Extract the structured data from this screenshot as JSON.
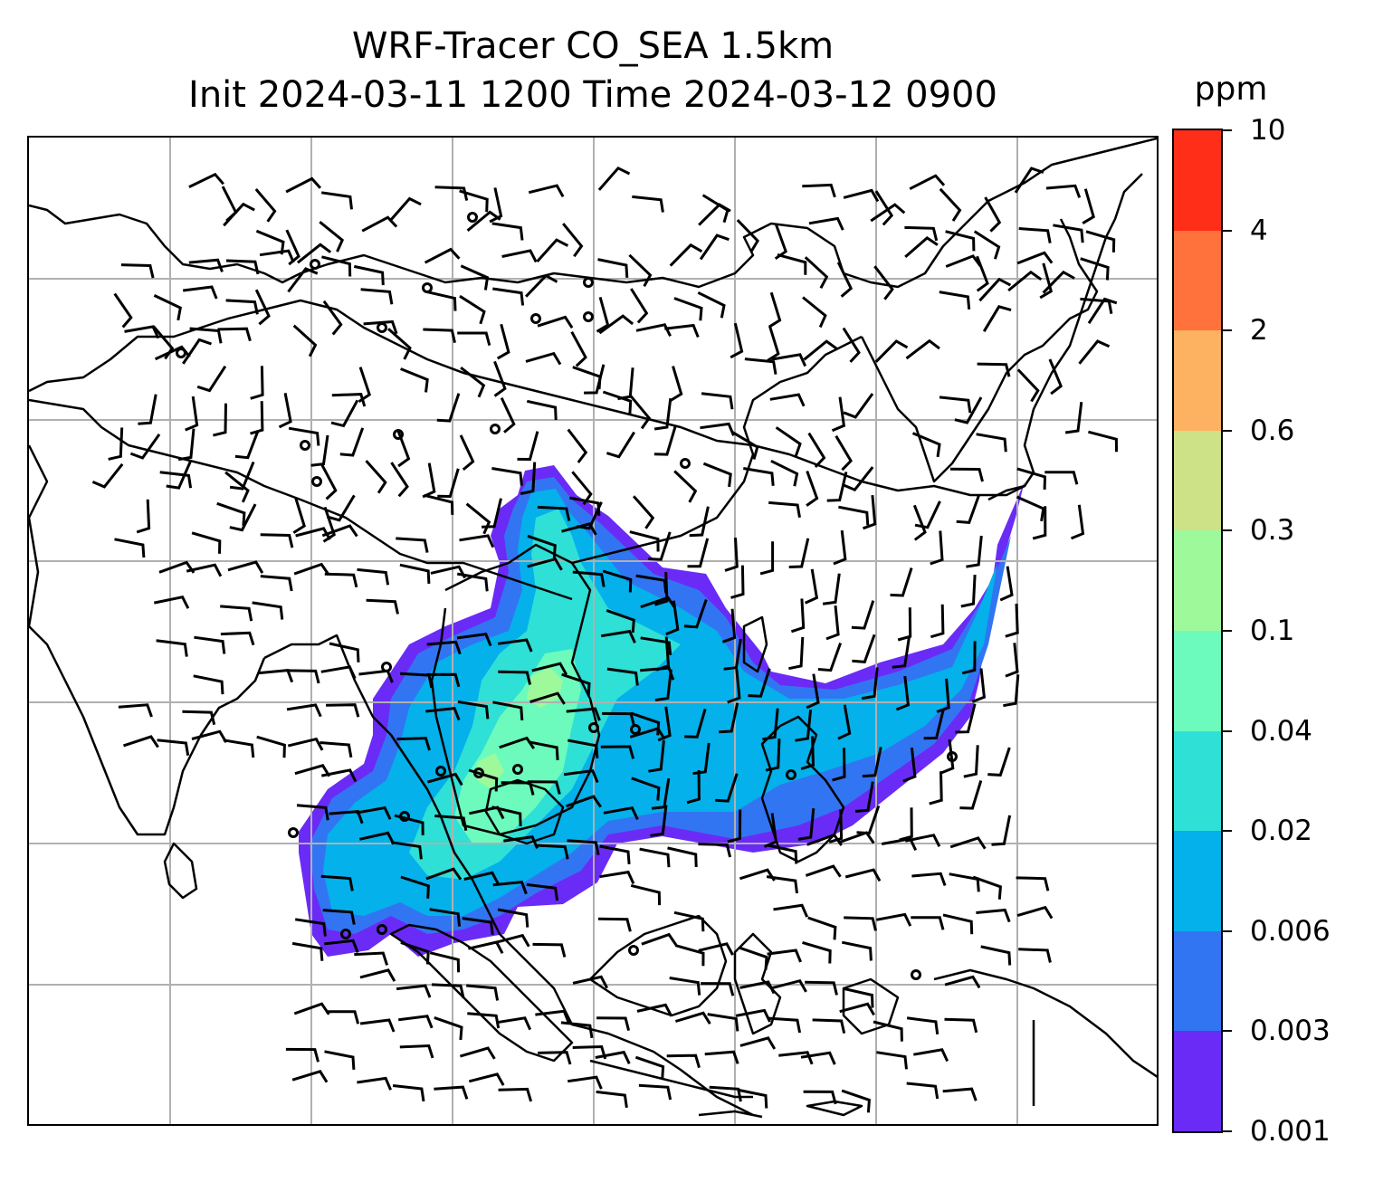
{
  "title": {
    "line1": "WRF-Tracer CO_SEA 1.5km",
    "line2": "Init 2024-03-11 1200 Time 2024-03-12 0900"
  },
  "colorbar": {
    "title": "ppm",
    "levels": [
      "0.001",
      "0.003",
      "0.006",
      "0.02",
      "0.04",
      "0.1",
      "0.3",
      "0.6",
      "2",
      "4",
      "10"
    ],
    "colors": [
      "#6a2bf7",
      "#3275f2",
      "#04b1ea",
      "#2fe0d6",
      "#6cfbbc",
      "#9ef99a",
      "#cde187",
      "#fdb261",
      "#ff723c",
      "#fe2e18"
    ]
  },
  "map": {
    "coastline_color": "#000000",
    "gridline_color": "#b0b0b0",
    "barb_color": "#000000"
  }
}
